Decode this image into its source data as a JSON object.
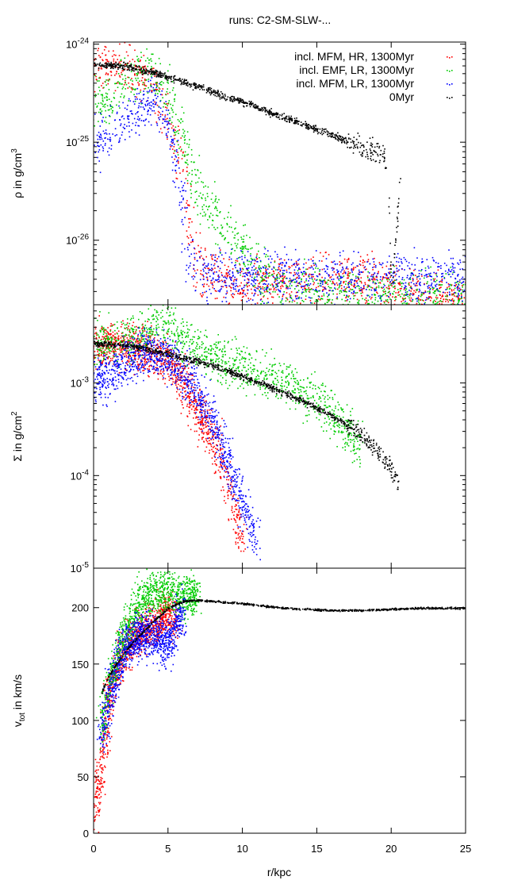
{
  "chart_data": {
    "type": "scatter",
    "title": "runs: C2-SM-SLW-...",
    "xlabel": "r/kpc",
    "xlim": [
      0,
      25
    ],
    "xticks": [
      "0",
      "5",
      "10",
      "15",
      "20",
      "25"
    ],
    "legend": {
      "placement": "top-right",
      "entries": [
        {
          "label": "incl. MFM, HR, 1300Myr",
          "color": "#ff0000"
        },
        {
          "label": "incl. EMF, LR, 1300Myr",
          "color": "#00cc00"
        },
        {
          "label": "incl. MFM, LR, 1300Myr",
          "color": "#0000ff"
        },
        {
          "label": "0Myr",
          "color": "#000000"
        }
      ]
    },
    "panels": [
      {
        "id": "rho",
        "scale": "log",
        "ylabel_base": "ρ in g/cm",
        "ylabel_sup": "3",
        "ylim": [
          2.2e-27,
          1.05e-24
        ],
        "yticks": [
          {
            "value": 1e-24,
            "exp": "-24"
          },
          {
            "value": 1e-25,
            "exp": "-25"
          },
          {
            "value": 1e-26,
            "exp": "-26"
          }
        ],
        "series": [
          {
            "name": "0Myr",
            "color": "#000000",
            "x": [
              0,
              2,
              4,
              6,
              8,
              10,
              12,
              14,
              16,
              18,
              19.5,
              19.8,
              20.0,
              20.6
            ],
            "y": [
              6.2e-25,
              6e-25,
              5.2e-25,
              4.2e-25,
              3.3e-25,
              2.6e-25,
              2e-25,
              1.55e-25,
              1.2e-25,
              9e-26,
              7.5e-26,
              3e-26,
              3e-27,
              4.5e-26
            ]
          },
          {
            "name": "incl. MFM, HR, 1300Myr",
            "color": "#ff0000",
            "x": [
              0,
              1,
              2,
              3,
              4,
              5,
              6,
              7,
              9,
              12,
              16,
              20,
              22,
              25
            ],
            "y": [
              6e-25,
              6e-25,
              5.5e-25,
              5e-25,
              4e-25,
              1.5e-25,
              6e-26,
              5e-27,
              4e-27,
              3.8e-27,
              3.8e-27,
              3.5e-27,
              2.8e-27,
              2.4e-27
            ]
          },
          {
            "name": "incl. EMF, LR, 1300Myr",
            "color": "#00cc00",
            "x": [
              0,
              1,
              2,
              3,
              4,
              5,
              6,
              7,
              9,
              11,
              13,
              16,
              20,
              25
            ],
            "y": [
              3e-25,
              2.5e-25,
              4.5e-25,
              5e-25,
              5e-25,
              3e-25,
              1e-25,
              3e-26,
              1.2e-26,
              5e-27,
              3e-27,
              2.8e-27,
              2.6e-27,
              2.7e-27
            ]
          },
          {
            "name": "incl. MFM, LR, 1300Myr",
            "color": "#0000ff",
            "x": [
              0,
              1,
              2,
              3,
              4,
              5,
              6,
              6.5,
              7,
              9,
              12,
              16,
              20,
              22,
              25
            ],
            "y": [
              1e-25,
              1.2e-25,
              1.5e-25,
              2.2e-25,
              2.8e-25,
              1.5e-25,
              2e-26,
              6e-27,
              4.5e-27,
              4.2e-27,
              4.2e-27,
              4.2e-27,
              4.2e-27,
              4.2e-27,
              4.2e-27
            ]
          }
        ]
      },
      {
        "id": "sigma",
        "scale": "log",
        "ylabel_base": "Σ in g/cm",
        "ylabel_sup": "2",
        "ylim": [
          1e-05,
          0.007
        ],
        "yticks": [
          {
            "value": 0.001,
            "exp": "-3"
          },
          {
            "value": 0.0001,
            "exp": "-4"
          },
          {
            "value": 1e-05,
            "exp": "-5"
          }
        ],
        "series": [
          {
            "name": "0Myr",
            "color": "#000000",
            "x": [
              0,
              2,
              4,
              6,
              8,
              10,
              12,
              14,
              16,
              18,
              19,
              20,
              20.5
            ],
            "y": [
              0.0027,
              0.0026,
              0.0023,
              0.0019,
              0.00155,
              0.0012,
              0.0009,
              0.00065,
              0.00045,
              0.00028,
              0.00019,
              0.00012,
              8e-05
            ]
          },
          {
            "name": "incl. MFM, HR, 1300Myr",
            "color": "#ff0000",
            "x": [
              0,
              1,
              2,
              3,
              4,
              5,
              6,
              7,
              8,
              9,
              10
            ],
            "y": [
              0.0025,
              0.0026,
              0.0025,
              0.0024,
              0.0022,
              0.0018,
              0.001,
              0.0005,
              0.00025,
              8e-05,
              2e-05
            ]
          },
          {
            "name": "incl. EMF, LR, 1300Myr",
            "color": "#00cc00",
            "x": [
              0,
              1,
              2,
              3,
              4,
              5,
              6,
              8,
              10,
              12,
              14,
              16,
              18
            ],
            "y": [
              0.0026,
              0.0028,
              0.003,
              0.0035,
              0.004,
              0.0045,
              0.003,
              0.002,
              0.0015,
              0.0012,
              0.0008,
              0.0005,
              0.0002
            ]
          },
          {
            "name": "incl. MFM, LR, 1300Myr",
            "color": "#0000ff",
            "x": [
              0,
              1,
              2,
              3,
              4,
              5,
              6,
              7,
              8,
              9,
              10,
              11
            ],
            "y": [
              0.00105,
              0.0012,
              0.0018,
              0.002,
              0.0022,
              0.0018,
              0.0013,
              0.0008,
              0.0004,
              0.00015,
              5e-05,
              2e-05
            ]
          }
        ]
      },
      {
        "id": "vtot",
        "scale": "linear",
        "ylabel_base": "v",
        "ylabel_sub": "tot",
        "ylabel_rest": " in km/s",
        "ylim": [
          0,
          235
        ],
        "yticks": [
          {
            "value": 0,
            "label": "0"
          },
          {
            "value": 50,
            "label": "50"
          },
          {
            "value": 100,
            "label": "100"
          },
          {
            "value": 150,
            "label": "150"
          },
          {
            "value": 200,
            "label": "200"
          }
        ],
        "series": [
          {
            "name": "0Myr",
            "color": "#000000",
            "x": [
              0.5,
              1,
              1.5,
              2,
              3,
              4,
              5,
              6,
              7,
              8,
              10,
              12,
              14,
              16,
              18,
              20,
              22,
              25
            ],
            "y": [
              125,
              140,
              150,
              160,
              175,
              188,
              200,
              206,
              207,
              206,
              204,
              201,
              199,
              198,
              198,
              199,
              200,
              200
            ]
          },
          {
            "name": "incl. MFM, HR, 1300Myr",
            "color": "#ff0000",
            "x": [
              0,
              0.5,
              1,
              2,
              3,
              4,
              5,
              5.5
            ],
            "y": [
              20,
              60,
              120,
              165,
              180,
              185,
              195,
              190
            ]
          },
          {
            "name": "incl. EMF, LR, 1300Myr",
            "color": "#00cc00",
            "x": [
              0.5,
              1,
              2,
              3,
              4,
              5,
              6,
              7
            ],
            "y": [
              90,
              130,
              175,
              205,
              215,
              215,
              210,
              212
            ]
          },
          {
            "name": "incl. MFM, LR, 1300Myr",
            "color": "#0000ff",
            "x": [
              0.5,
              1,
              2,
              3,
              4,
              5,
              6
            ],
            "y": [
              80,
              120,
              165,
              175,
              175,
              168,
              200
            ]
          }
        ]
      }
    ]
  }
}
